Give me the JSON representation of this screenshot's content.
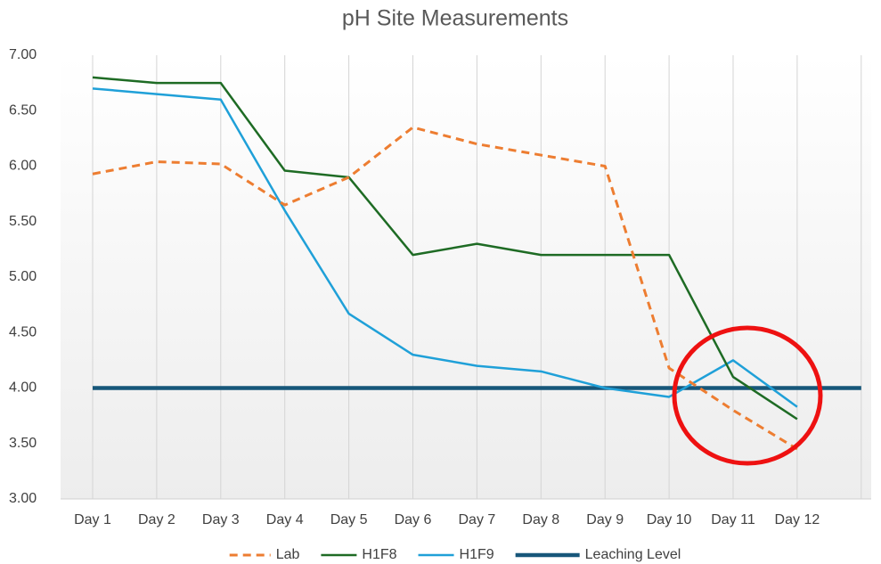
{
  "chart_data": {
    "type": "line",
    "title": "pH Site Measurements",
    "categories": [
      "Day 1",
      "Day 2",
      "Day 3",
      "Day 4",
      "Day 5",
      "Day 6",
      "Day 7",
      "Day 8",
      "Day 9",
      "Day 10",
      "Day 11",
      "Day 12",
      null
    ],
    "series": [
      {
        "name": "Lab",
        "color": "#ed7d31",
        "dashed": true,
        "values": [
          5.93,
          6.04,
          6.02,
          5.65,
          5.9,
          6.35,
          6.2,
          6.1,
          6.0,
          4.18,
          3.8,
          3.45,
          null
        ]
      },
      {
        "name": "H1F8",
        "color": "#1e6b24",
        "values": [
          6.8,
          6.75,
          6.75,
          5.96,
          5.9,
          5.2,
          5.3,
          5.2,
          5.2,
          5.2,
          4.1,
          3.72,
          null
        ]
      },
      {
        "name": "H1F9",
        "color": "#1fa0d8",
        "values": [
          6.7,
          6.65,
          6.6,
          5.6,
          4.67,
          4.3,
          4.2,
          4.15,
          4.0,
          3.92,
          4.25,
          3.83,
          null
        ]
      },
      {
        "name": "Leaching Level",
        "color": "#17577a",
        "values": [
          4,
          4,
          4,
          4,
          4,
          4,
          4,
          4,
          4,
          4,
          4,
          4,
          4
        ]
      }
    ],
    "ylim": [
      3,
      7
    ],
    "yticks": [
      {
        "value": 3,
        "label": "3.00"
      },
      {
        "value": 3.5,
        "label": "3.50"
      },
      {
        "value": 4,
        "label": "4.00"
      },
      {
        "value": 4.5,
        "label": "4.50"
      },
      {
        "value": 5,
        "label": "5.00"
      },
      {
        "value": 5.5,
        "label": "5.50"
      },
      {
        "value": 6,
        "label": "6.00"
      },
      {
        "value": 6.5,
        "label": "6.50"
      },
      {
        "value": 7,
        "label": "7.00"
      }
    ],
    "grid": "vertical",
    "legend": "bottom"
  }
}
